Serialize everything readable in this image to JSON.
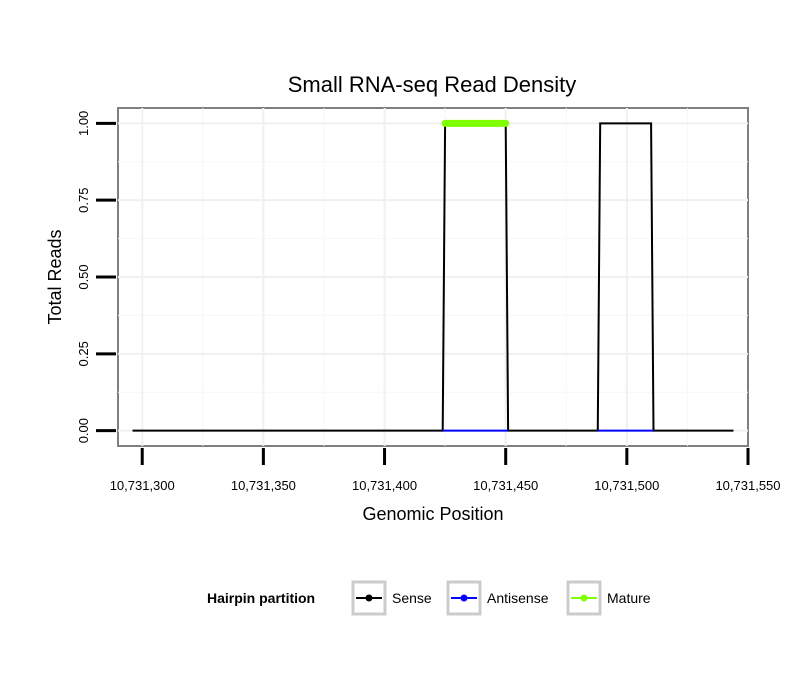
{
  "chart_data": {
    "type": "line",
    "title": "Small RNA-seq Read Density",
    "xlabel": "Genomic Position",
    "ylabel": "Total Reads",
    "xlim": [
      10731290,
      10731550
    ],
    "ylim": [
      -0.05,
      1.05
    ],
    "x_ticks": [
      10731300,
      10731350,
      10731400,
      10731450,
      10731500,
      10731550
    ],
    "x_tick_labels": [
      "10,731,300",
      "10,731,350",
      "10,731,400",
      "10,731,450",
      "10,731,500",
      "10,731,550"
    ],
    "y_ticks": [
      0,
      0.25,
      0.5,
      0.75,
      1.0
    ],
    "y_tick_labels": [
      "0.00",
      "0.25",
      "0.50",
      "0.75",
      "1.00"
    ],
    "grid": true,
    "legend_position": "bottom",
    "legend_title": "Hairpin partition",
    "series": [
      {
        "name": "Sense",
        "color": "#000000",
        "points": [
          [
            10731296,
            0
          ],
          [
            10731424,
            0
          ],
          [
            10731425,
            1
          ],
          [
            10731450,
            1
          ],
          [
            10731451,
            0
          ],
          [
            10731488,
            0
          ],
          [
            10731489,
            1
          ],
          [
            10731510,
            1
          ],
          [
            10731511,
            0
          ],
          [
            10731544,
            0
          ]
        ]
      },
      {
        "name": "Antisense",
        "color": "#0000ff",
        "points": [
          [
            10731424,
            0
          ],
          [
            10731451,
            0
          ],
          [
            10731488,
            0
          ],
          [
            10731511,
            0
          ]
        ]
      },
      {
        "name": "Mature",
        "color": "#7fff00",
        "points": [
          [
            10731425,
            1
          ],
          [
            10731450,
            1
          ]
        ]
      }
    ]
  }
}
